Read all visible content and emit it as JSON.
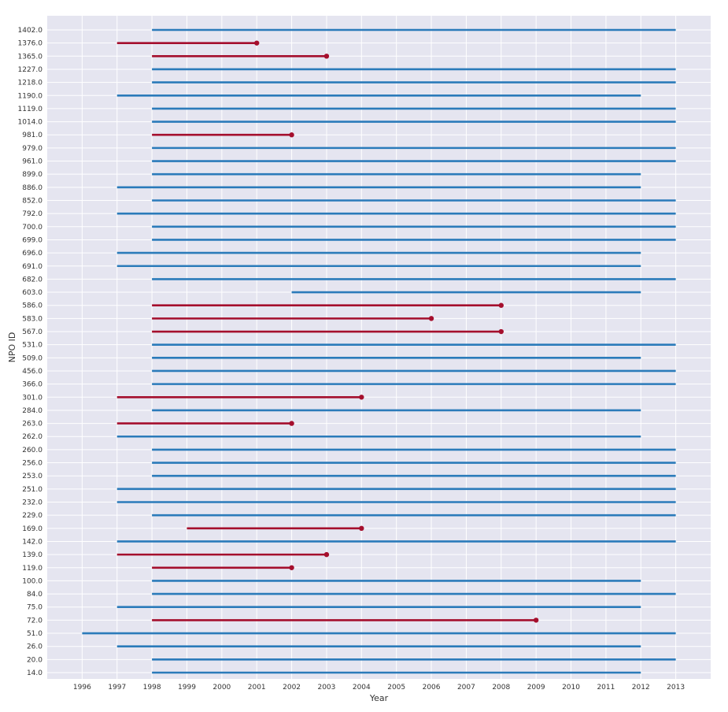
{
  "chart_data": {
    "type": "timeline",
    "xlabel": "Year",
    "ylabel": "NPO ID",
    "xlim": [
      1995,
      2014
    ],
    "x_ticks": [
      "1996",
      "1997",
      "1998",
      "1999",
      "2000",
      "2001",
      "2002",
      "2003",
      "2004",
      "2005",
      "2006",
      "2007",
      "2008",
      "2009",
      "2010",
      "2011",
      "2012",
      "2013"
    ],
    "grid": true,
    "colors": {
      "active": "#2b7bba",
      "closed": "#a50f2d",
      "background": "#e5e5f0",
      "grid": "#ffffff"
    },
    "rows": [
      {
        "id": "1402.0",
        "start": 1998,
        "end": 2013,
        "closed": false
      },
      {
        "id": "1376.0",
        "start": 1997,
        "end": 2001,
        "closed": true
      },
      {
        "id": "1365.0",
        "start": 1998,
        "end": 2003,
        "closed": true
      },
      {
        "id": "1227.0",
        "start": 1998,
        "end": 2013,
        "closed": false
      },
      {
        "id": "1218.0",
        "start": 1998,
        "end": 2013,
        "closed": false
      },
      {
        "id": "1190.0",
        "start": 1997,
        "end": 2012,
        "closed": false
      },
      {
        "id": "1119.0",
        "start": 1998,
        "end": 2013,
        "closed": false
      },
      {
        "id": "1014.0",
        "start": 1998,
        "end": 2013,
        "closed": false
      },
      {
        "id": "981.0",
        "start": 1998,
        "end": 2002,
        "closed": true
      },
      {
        "id": "979.0",
        "start": 1998,
        "end": 2013,
        "closed": false
      },
      {
        "id": "961.0",
        "start": 1998,
        "end": 2013,
        "closed": false
      },
      {
        "id": "899.0",
        "start": 1998,
        "end": 2012,
        "closed": false
      },
      {
        "id": "886.0",
        "start": 1997,
        "end": 2012,
        "closed": false
      },
      {
        "id": "852.0",
        "start": 1998,
        "end": 2013,
        "closed": false
      },
      {
        "id": "792.0",
        "start": 1997,
        "end": 2013,
        "closed": false
      },
      {
        "id": "700.0",
        "start": 1998,
        "end": 2013,
        "closed": false
      },
      {
        "id": "699.0",
        "start": 1998,
        "end": 2013,
        "closed": false
      },
      {
        "id": "696.0",
        "start": 1997,
        "end": 2012,
        "closed": false
      },
      {
        "id": "691.0",
        "start": 1997,
        "end": 2012,
        "closed": false
      },
      {
        "id": "682.0",
        "start": 1998,
        "end": 2013,
        "closed": false
      },
      {
        "id": "603.0",
        "start": 2002,
        "end": 2012,
        "closed": false
      },
      {
        "id": "586.0",
        "start": 1998,
        "end": 2008,
        "closed": true
      },
      {
        "id": "583.0",
        "start": 1998,
        "end": 2006,
        "closed": true
      },
      {
        "id": "567.0",
        "start": 1998,
        "end": 2008,
        "closed": true
      },
      {
        "id": "531.0",
        "start": 1998,
        "end": 2013,
        "closed": false
      },
      {
        "id": "509.0",
        "start": 1998,
        "end": 2012,
        "closed": false
      },
      {
        "id": "456.0",
        "start": 1998,
        "end": 2013,
        "closed": false
      },
      {
        "id": "366.0",
        "start": 1998,
        "end": 2013,
        "closed": false
      },
      {
        "id": "301.0",
        "start": 1997,
        "end": 2004,
        "closed": true
      },
      {
        "id": "284.0",
        "start": 1998,
        "end": 2012,
        "closed": false
      },
      {
        "id": "263.0",
        "start": 1997,
        "end": 2002,
        "closed": true
      },
      {
        "id": "262.0",
        "start": 1997,
        "end": 2012,
        "closed": false
      },
      {
        "id": "260.0",
        "start": 1998,
        "end": 2013,
        "closed": false
      },
      {
        "id": "256.0",
        "start": 1998,
        "end": 2013,
        "closed": false
      },
      {
        "id": "253.0",
        "start": 1998,
        "end": 2013,
        "closed": false
      },
      {
        "id": "251.0",
        "start": 1997,
        "end": 2013,
        "closed": false
      },
      {
        "id": "232.0",
        "start": 1997,
        "end": 2013,
        "closed": false
      },
      {
        "id": "229.0",
        "start": 1998,
        "end": 2013,
        "closed": false
      },
      {
        "id": "169.0",
        "start": 1999,
        "end": 2004,
        "closed": true
      },
      {
        "id": "142.0",
        "start": 1997,
        "end": 2013,
        "closed": false
      },
      {
        "id": "139.0",
        "start": 1997,
        "end": 2003,
        "closed": true
      },
      {
        "id": "119.0",
        "start": 1998,
        "end": 2002,
        "closed": true
      },
      {
        "id": "100.0",
        "start": 1998,
        "end": 2012,
        "closed": false
      },
      {
        "id": "84.0",
        "start": 1998,
        "end": 2013,
        "closed": false
      },
      {
        "id": "75.0",
        "start": 1997,
        "end": 2012,
        "closed": false
      },
      {
        "id": "72.0",
        "start": 1998,
        "end": 2009,
        "closed": true
      },
      {
        "id": "51.0",
        "start": 1996,
        "end": 2013,
        "closed": false
      },
      {
        "id": "26.0",
        "start": 1997,
        "end": 2012,
        "closed": false
      },
      {
        "id": "20.0",
        "start": 1998,
        "end": 2013,
        "closed": false
      },
      {
        "id": "14.0",
        "start": 1998,
        "end": 2012,
        "closed": false
      }
    ]
  }
}
